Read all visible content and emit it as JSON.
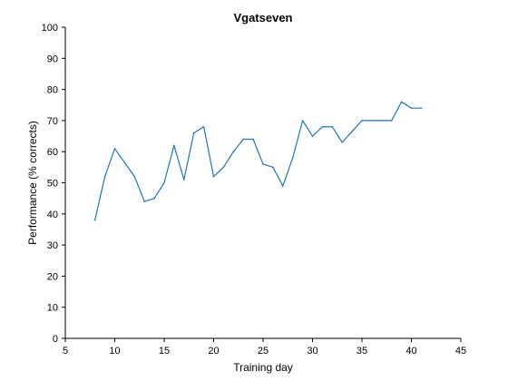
{
  "chart_data": {
    "type": "line",
    "title": "Vgatseven",
    "xlabel": "Training day",
    "ylabel": "Performance (% corrects)",
    "xlim": [
      5,
      45
    ],
    "ylim": [
      0,
      100
    ],
    "xticks": [
      5,
      10,
      15,
      20,
      25,
      30,
      35,
      40,
      45
    ],
    "yticks": [
      0,
      10,
      20,
      30,
      40,
      50,
      60,
      70,
      80,
      90,
      100
    ],
    "grid": false,
    "series": [
      {
        "name": "Performance",
        "color": "#1f77b4",
        "x": [
          8,
          9,
          10,
          11,
          12,
          13,
          14,
          15,
          16,
          17,
          18,
          19,
          20,
          21,
          22,
          23,
          24,
          25,
          26,
          27,
          28,
          29,
          30,
          31,
          32,
          33,
          34,
          35,
          36,
          37,
          38,
          39,
          40,
          41
        ],
        "y": [
          38,
          52,
          61,
          56.5,
          52,
          44,
          45,
          50,
          62,
          51,
          66,
          68,
          52,
          55,
          60,
          64,
          64,
          56,
          55,
          49,
          58,
          70,
          65,
          68,
          68,
          63,
          66.5,
          70,
          70,
          70,
          70,
          76,
          74,
          74
        ]
      }
    ]
  }
}
